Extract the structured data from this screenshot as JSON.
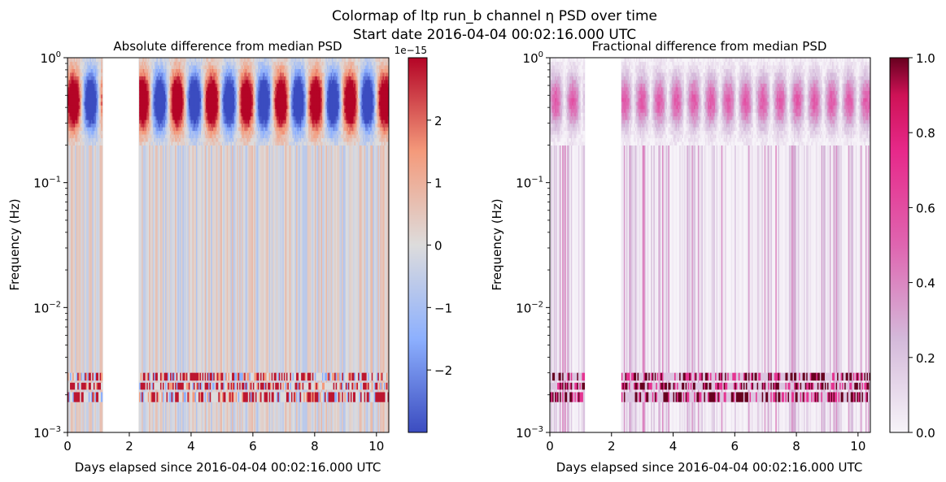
{
  "figure": {
    "suptitle_line1": "Colormap of ltp run_b channel η PSD over time",
    "suptitle_line2": "Start date 2016-04-04 00:02:16.000 UTC"
  },
  "chart_data": [
    {
      "type": "heatmap",
      "title": "Absolute difference from median PSD",
      "xlabel": "Days elapsed since 2016-04-04 00:02:16.000 UTC",
      "ylabel": "Frequency (Hz)",
      "xlim": [
        0,
        10.4
      ],
      "ylim": [
        0.001,
        1
      ],
      "yscale": "log",
      "xticks": [
        0,
        2,
        4,
        6,
        8,
        10
      ],
      "yticks": [
        {
          "mantissa": "10",
          "exp": "−3",
          "value": 0.001
        },
        {
          "mantissa": "10",
          "exp": "−2",
          "value": 0.01
        },
        {
          "mantissa": "10",
          "exp": "−1",
          "value": 0.1
        },
        {
          "mantissa": "10",
          "exp": "0",
          "value": 1
        }
      ],
      "data_gap_days": [
        1.15,
        2.3
      ],
      "colormap": "coolwarm",
      "colorbar": {
        "range": [
          -3e-15,
          3e-15
        ],
        "offset_label": "1e−15",
        "ticks": [
          {
            "value": 2,
            "label": "2"
          },
          {
            "value": 1,
            "label": "1"
          },
          {
            "value": 0,
            "label": "0"
          },
          {
            "value": -1,
            "label": "−1"
          },
          {
            "value": -2,
            "label": "−2"
          }
        ]
      }
    },
    {
      "type": "heatmap",
      "title": "Fractional difference from median PSD",
      "xlabel": "Days elapsed since 2016-04-04 00:02:16.000 UTC",
      "ylabel": "Frequency (Hz)",
      "xlim": [
        0,
        10.4
      ],
      "ylim": [
        0.001,
        1
      ],
      "yscale": "log",
      "xticks": [
        0,
        2,
        4,
        6,
        8,
        10
      ],
      "yticks": [
        {
          "mantissa": "10",
          "exp": "−3",
          "value": 0.001
        },
        {
          "mantissa": "10",
          "exp": "−2",
          "value": 0.01
        },
        {
          "mantissa": "10",
          "exp": "−1",
          "value": 0.1
        },
        {
          "mantissa": "10",
          "exp": "0",
          "value": 1
        }
      ],
      "data_gap_days": [
        1.15,
        2.3
      ],
      "colormap": "PuRd",
      "colorbar": {
        "range": [
          0,
          1
        ],
        "ticks": [
          {
            "value": 1.0,
            "label": "1.0"
          },
          {
            "value": 0.8,
            "label": "0.8"
          },
          {
            "value": 0.6,
            "label": "0.6"
          },
          {
            "value": 0.4,
            "label": "0.4"
          },
          {
            "value": 0.2,
            "label": "0.2"
          },
          {
            "value": 0.0,
            "label": "0.0"
          }
        ]
      }
    }
  ]
}
